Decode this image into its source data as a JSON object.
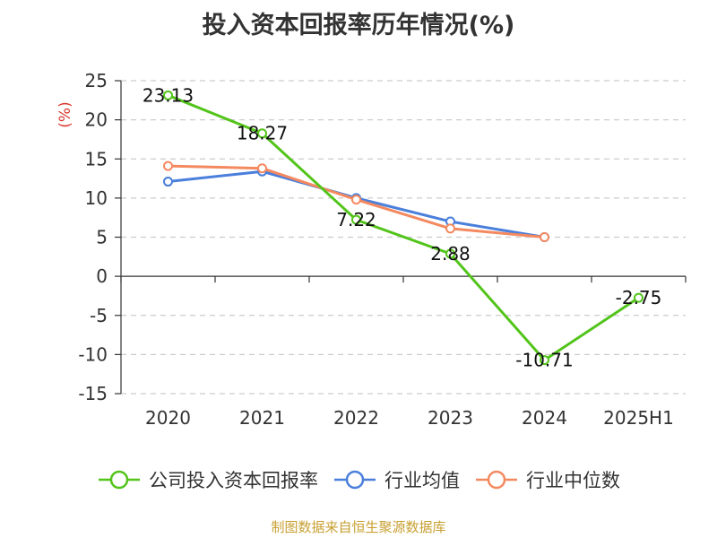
{
  "chart_data": {
    "type": "line",
    "title": "投入资本回报率历年情况(%)",
    "ylabel": "(%)",
    "xlabel": "",
    "categories": [
      "2020",
      "2021",
      "2022",
      "2023",
      "2024",
      "2025H1"
    ],
    "ylim": [
      -15,
      25
    ],
    "yticks": [
      25,
      20,
      15,
      10,
      5,
      0,
      -5,
      -10,
      -15
    ],
    "grid": "horizontal-dashed",
    "legend_position": "bottom",
    "series": [
      {
        "name": "公司投入资本回报率",
        "color": "#52c41a",
        "values": [
          23.13,
          18.27,
          7.22,
          2.88,
          -10.71,
          -2.75
        ],
        "labels": [
          "23.13",
          "18.27",
          "7.22",
          "2.88",
          "-10.71",
          "-2.75"
        ]
      },
      {
        "name": "行业均值",
        "color": "#4a7fdb",
        "values": [
          12.1,
          13.4,
          10.0,
          7.0,
          5.0,
          null
        ]
      },
      {
        "name": "行业中位数",
        "color": "#f4895f",
        "values": [
          14.1,
          13.8,
          9.8,
          6.1,
          5.0,
          null
        ]
      }
    ]
  },
  "footer": "制图数据来自恒生聚源数据库"
}
